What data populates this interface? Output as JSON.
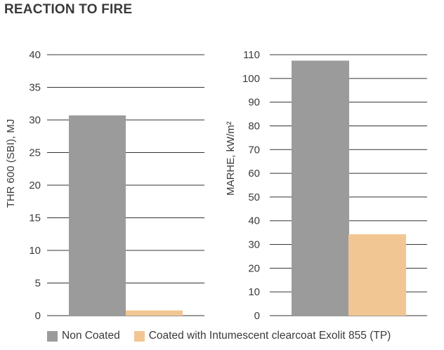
{
  "title": "REACTION TO FIRE",
  "colors": {
    "non_coated": "#9b9b9b",
    "coated": "#f2c693",
    "grid": "#333333",
    "text": "#3a3a3a"
  },
  "chart_data": [
    {
      "type": "bar",
      "categories": [
        "Non Coated",
        "Coated with Intumescent clearcoat Exolit 855 (TP)"
      ],
      "values": [
        30.7,
        0.8
      ],
      "ylabel": "THR 600 (SBI), MJ",
      "xlabel": "",
      "ylim": [
        0,
        40
      ],
      "yticks": [
        0,
        5,
        10,
        15,
        20,
        25,
        30,
        35,
        40
      ],
      "grid": true
    },
    {
      "type": "bar",
      "categories": [
        "Non Coated",
        "Coated with Intumescent clearcoat Exolit 855 (TP)"
      ],
      "values": [
        107.5,
        34.3
      ],
      "ylabel": "MARHE, kW/m²",
      "xlabel": "",
      "ylim": [
        0,
        110
      ],
      "yticks": [
        0,
        10,
        20,
        30,
        40,
        50,
        60,
        70,
        80,
        90,
        100,
        110
      ],
      "grid": true
    }
  ],
  "legend": {
    "placement": "bottom",
    "items": [
      {
        "label": "Non Coated",
        "color": "#9b9b9b"
      },
      {
        "label": "Coated with Intumescent clearcoat Exolit 855 (TP)",
        "color": "#f2c693"
      }
    ]
  }
}
